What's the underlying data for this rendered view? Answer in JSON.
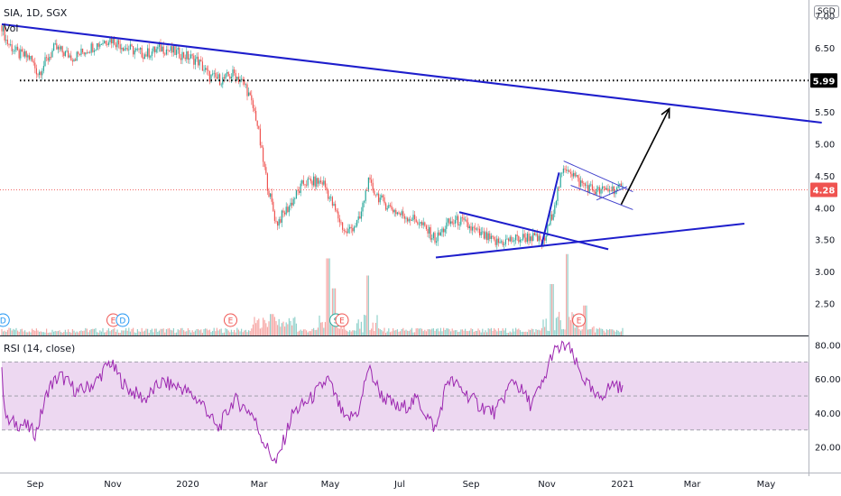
{
  "header": {
    "title": "SIA, 1D, SGX",
    "vol_label": "Vol",
    "currency_badge": "SGD",
    "rsi_label": "RSI (14, close)"
  },
  "chart_data": [
    {
      "type": "candlestick",
      "title": "SIA, 1D, SGX",
      "y_ticks": [
        "7.00",
        "6.50",
        "6.00",
        "5.50",
        "5.00",
        "4.50",
        "4.00",
        "3.50",
        "3.00",
        "2.50"
      ],
      "ylim": [
        2.0,
        7.25
      ],
      "x_ticks": [
        "Sep",
        "Nov",
        "2020",
        "Mar",
        "May",
        "Jul",
        "Sep",
        "Nov",
        "2021",
        "Mar",
        "May"
      ],
      "price_labels": {
        "resistance": "5.99",
        "last": "4.28"
      },
      "price_path": [
        {
          "d": "2019-08-01",
          "p": 6.85
        },
        {
          "d": "2019-08-05",
          "p": 6.6
        },
        {
          "d": "2019-08-15",
          "p": 6.4
        },
        {
          "d": "2019-08-25",
          "p": 6.35
        },
        {
          "d": "2019-09-01",
          "p": 6.1
        },
        {
          "d": "2019-09-15",
          "p": 6.5
        },
        {
          "d": "2019-10-01",
          "p": 6.35
        },
        {
          "d": "2019-10-15",
          "p": 6.5
        },
        {
          "d": "2019-11-01",
          "p": 6.65
        },
        {
          "d": "2019-11-15",
          "p": 6.5
        },
        {
          "d": "2019-12-01",
          "p": 6.4
        },
        {
          "d": "2019-12-15",
          "p": 6.5
        },
        {
          "d": "2020-01-01",
          "p": 6.4
        },
        {
          "d": "2020-01-15",
          "p": 6.3
        },
        {
          "d": "2020-01-25",
          "p": 6.05
        },
        {
          "d": "2020-02-05",
          "p": 6.0
        },
        {
          "d": "2020-02-15",
          "p": 6.1
        },
        {
          "d": "2020-02-25",
          "p": 5.9
        },
        {
          "d": "2020-03-05",
          "p": 5.4
        },
        {
          "d": "2020-03-10",
          "p": 4.8
        },
        {
          "d": "2020-03-15",
          "p": 4.3
        },
        {
          "d": "2020-03-22",
          "p": 3.75
        },
        {
          "d": "2020-04-01",
          "p": 4.0
        },
        {
          "d": "2020-04-15",
          "p": 4.4
        },
        {
          "d": "2020-05-01",
          "p": 4.4
        },
        {
          "d": "2020-05-10",
          "p": 4.0
        },
        {
          "d": "2020-05-20",
          "p": 3.6
        },
        {
          "d": "2020-06-01",
          "p": 3.8
        },
        {
          "d": "2020-06-08",
          "p": 4.4
        },
        {
          "d": "2020-06-20",
          "p": 4.1
        },
        {
          "d": "2020-07-05",
          "p": 3.9
        },
        {
          "d": "2020-07-20",
          "p": 3.8
        },
        {
          "d": "2020-08-05",
          "p": 3.5
        },
        {
          "d": "2020-08-15",
          "p": 3.75
        },
        {
          "d": "2020-08-25",
          "p": 3.8
        },
        {
          "d": "2020-09-10",
          "p": 3.6
        },
        {
          "d": "2020-09-25",
          "p": 3.45
        },
        {
          "d": "2020-10-10",
          "p": 3.5
        },
        {
          "d": "2020-10-25",
          "p": 3.55
        },
        {
          "d": "2020-11-05",
          "p": 3.45
        },
        {
          "d": "2020-11-12",
          "p": 3.9
        },
        {
          "d": "2020-11-20",
          "p": 4.5
        },
        {
          "d": "2020-11-25",
          "p": 4.65
        },
        {
          "d": "2020-12-05",
          "p": 4.4
        },
        {
          "d": "2020-12-20",
          "p": 4.25
        },
        {
          "d": "2021-01-05",
          "p": 4.3
        },
        {
          "d": "2021-01-12",
          "p": 4.28
        }
      ],
      "volume_peaks": [
        {
          "d": "2020-03-18",
          "v": 0.25
        },
        {
          "d": "2020-05-05",
          "v": 0.9
        },
        {
          "d": "2020-05-10",
          "v": 0.55
        },
        {
          "d": "2020-06-08",
          "v": 0.7
        },
        {
          "d": "2020-11-12",
          "v": 0.6
        },
        {
          "d": "2020-11-25",
          "v": 0.95
        },
        {
          "d": "2020-12-10",
          "v": 0.35
        }
      ],
      "lines": [
        {
          "name": "downtrend",
          "color": "#1e1ecc",
          "from": {
            "d": "2019-08-01",
            "p": 6.87
          },
          "to": {
            "d": "2021-06-30",
            "p": 5.33
          }
        },
        {
          "name": "support-lower",
          "color": "#1e1ecc",
          "from": {
            "d": "2020-08-05",
            "p": 3.22
          },
          "to": {
            "d": "2021-04-25",
            "p": 3.75
          }
        },
        {
          "name": "triangle-upper",
          "color": "#1e1ecc",
          "from": {
            "d": "2020-08-25",
            "p": 3.93
          },
          "to": {
            "d": "2020-12-30",
            "p": 3.35
          }
        },
        {
          "name": "rally-line",
          "color": "#1e1ecc",
          "from": {
            "d": "2020-11-03",
            "p": 3.4
          },
          "to": {
            "d": "2020-11-18",
            "p": 4.55
          }
        },
        {
          "name": "flag-upper",
          "color": "#4040cc",
          "from": {
            "d": "2020-11-22",
            "p": 4.73
          },
          "to": {
            "d": "2021-01-20",
            "p": 4.25
          }
        },
        {
          "name": "flag-lower",
          "color": "#4040cc",
          "from": {
            "d": "2020-11-28",
            "p": 4.35
          },
          "to": {
            "d": "2021-01-20",
            "p": 3.97
          }
        },
        {
          "name": "flag-mid",
          "color": "#4040cc",
          "from": {
            "d": "2020-12-20",
            "p": 4.12
          },
          "to": {
            "d": "2021-01-15",
            "p": 4.33
          }
        }
      ],
      "horizontal_levels": [
        {
          "name": "resistance-level",
          "value": 5.99,
          "style": "dotted",
          "color": "#000000"
        }
      ],
      "projection_arrow": {
        "from": {
          "d": "2021-01-10",
          "p": 4.05
        },
        "to": {
          "d": "2021-02-20",
          "p": 5.55
        },
        "color": "#000000"
      },
      "events": [
        {
          "label": "D",
          "kind": "dividend",
          "d": "2019-08-02"
        },
        {
          "label": "E",
          "kind": "earnings",
          "d": "2019-11-04"
        },
        {
          "label": "D",
          "kind": "dividend",
          "d": "2019-11-12"
        },
        {
          "label": "E",
          "kind": "earnings",
          "d": "2020-02-12"
        },
        {
          "label": "S",
          "kind": "split",
          "d": "2020-05-12"
        },
        {
          "label": "E",
          "kind": "earnings",
          "d": "2020-05-17"
        },
        {
          "label": "E",
          "kind": "earnings",
          "d": "2020-12-05"
        }
      ],
      "colors": {
        "up": "#26a69a",
        "down": "#ef5350",
        "last_price_badge": "#ef5350",
        "resistance_badge": "#000000"
      }
    },
    {
      "type": "line",
      "title": "RSI (14, close)",
      "y_ticks": [
        "80.00",
        "60.00",
        "40.00",
        "20.00"
      ],
      "ylim": [
        5,
        85
      ],
      "band": [
        30,
        70
      ],
      "color": "#9c27b0",
      "band_color": "#e1bee7",
      "points": [
        {
          "d": "2019-08-01",
          "v": 63
        },
        {
          "d": "2019-08-05",
          "v": 35
        },
        {
          "d": "2019-08-20",
          "v": 33
        },
        {
          "d": "2019-08-30",
          "v": 28
        },
        {
          "d": "2019-09-10",
          "v": 55
        },
        {
          "d": "2019-09-20",
          "v": 62
        },
        {
          "d": "2019-10-05",
          "v": 52
        },
        {
          "d": "2019-10-20",
          "v": 58
        },
        {
          "d": "2019-11-01",
          "v": 70
        },
        {
          "d": "2019-11-15",
          "v": 55
        },
        {
          "d": "2019-12-01",
          "v": 48
        },
        {
          "d": "2019-12-15",
          "v": 58
        },
        {
          "d": "2020-01-01",
          "v": 55
        },
        {
          "d": "2020-01-20",
          "v": 45
        },
        {
          "d": "2020-02-01",
          "v": 30
        },
        {
          "d": "2020-02-15",
          "v": 48
        },
        {
          "d": "2020-03-01",
          "v": 40
        },
        {
          "d": "2020-03-12",
          "v": 22
        },
        {
          "d": "2020-03-22",
          "v": 10
        },
        {
          "d": "2020-04-05",
          "v": 40
        },
        {
          "d": "2020-04-20",
          "v": 48
        },
        {
          "d": "2020-05-05",
          "v": 60
        },
        {
          "d": "2020-05-20",
          "v": 35
        },
        {
          "d": "2020-06-01",
          "v": 42
        },
        {
          "d": "2020-06-08",
          "v": 67
        },
        {
          "d": "2020-06-20",
          "v": 50
        },
        {
          "d": "2020-07-05",
          "v": 42
        },
        {
          "d": "2020-07-20",
          "v": 48
        },
        {
          "d": "2020-08-05",
          "v": 30
        },
        {
          "d": "2020-08-15",
          "v": 60
        },
        {
          "d": "2020-08-25",
          "v": 55
        },
        {
          "d": "2020-09-10",
          "v": 45
        },
        {
          "d": "2020-09-25",
          "v": 40
        },
        {
          "d": "2020-10-10",
          "v": 60
        },
        {
          "d": "2020-10-25",
          "v": 45
        },
        {
          "d": "2020-11-05",
          "v": 58
        },
        {
          "d": "2020-11-12",
          "v": 75
        },
        {
          "d": "2020-11-25",
          "v": 80
        },
        {
          "d": "2020-12-05",
          "v": 65
        },
        {
          "d": "2020-12-20",
          "v": 48
        },
        {
          "d": "2021-01-05",
          "v": 58
        },
        {
          "d": "2021-01-12",
          "v": 52
        }
      ],
      "last_value": 52
    }
  ]
}
